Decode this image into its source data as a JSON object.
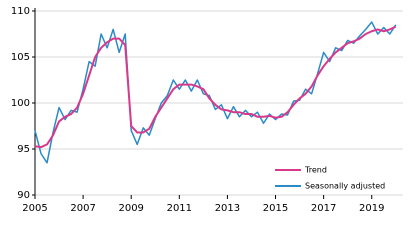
{
  "chart_data": {
    "type": "line",
    "x": [
      2005,
      2005.25,
      2005.5,
      2005.75,
      2006,
      2006.25,
      2006.5,
      2006.75,
      2007,
      2007.25,
      2007.5,
      2007.75,
      2008,
      2008.25,
      2008.5,
      2008.75,
      2009,
      2009.25,
      2009.5,
      2009.75,
      2010,
      2010.25,
      2010.5,
      2010.75,
      2011,
      2011.25,
      2011.5,
      2011.75,
      2012,
      2012.25,
      2012.5,
      2012.75,
      2013,
      2013.25,
      2013.5,
      2013.75,
      2014,
      2014.25,
      2014.5,
      2014.75,
      2015,
      2015.25,
      2015.5,
      2015.75,
      2016,
      2016.25,
      2016.5,
      2016.75,
      2017,
      2017.25,
      2017.5,
      2017.75,
      2018,
      2018.25,
      2018.5,
      2018.75,
      2019,
      2019.25,
      2019.5,
      2019.75,
      2020
    ],
    "series": [
      {
        "name": "Trend",
        "color": "#d9398d",
        "values": [
          95.3,
          95.2,
          95.5,
          96.5,
          98.0,
          98.5,
          98.8,
          99.5,
          101.0,
          103.0,
          105.0,
          106.0,
          106.6,
          107.0,
          107.0,
          106.3,
          97.5,
          96.8,
          96.8,
          97.2,
          98.5,
          99.5,
          100.5,
          101.5,
          102.0,
          102.0,
          102.0,
          101.8,
          101.5,
          100.5,
          99.8,
          99.3,
          99.2,
          99.0,
          99.0,
          98.8,
          98.8,
          98.5,
          98.5,
          98.6,
          98.4,
          98.5,
          99.0,
          99.8,
          100.5,
          101.0,
          101.8,
          103.0,
          104.0,
          104.8,
          105.5,
          106.0,
          106.5,
          106.7,
          107.0,
          107.5,
          107.8,
          108.0,
          107.8,
          108.0,
          108.3
        ]
      },
      {
        "name": "Seasonally adjusted",
        "color": "#2a8bc6",
        "values": [
          97.0,
          94.5,
          93.5,
          96.8,
          99.5,
          98.2,
          99.2,
          99.0,
          101.5,
          104.5,
          104.0,
          107.5,
          106.0,
          108.0,
          105.5,
          107.5,
          97.0,
          95.5,
          97.3,
          96.5,
          98.3,
          100.0,
          100.8,
          102.5,
          101.5,
          102.5,
          101.3,
          102.5,
          101.0,
          100.8,
          99.3,
          99.8,
          98.3,
          99.6,
          98.5,
          99.2,
          98.5,
          99.0,
          97.8,
          98.8,
          98.2,
          98.8,
          98.7,
          100.2,
          100.3,
          101.5,
          101.0,
          103.2,
          105.5,
          104.5,
          106.0,
          105.7,
          106.8,
          106.5,
          107.3,
          108.0,
          108.8,
          107.5,
          108.2,
          107.5,
          108.5
        ]
      }
    ],
    "xlim": [
      2005,
      2020.3
    ],
    "xticks": [
      2005,
      2007,
      2009,
      2011,
      2013,
      2015,
      2017,
      2019
    ],
    "ylim": [
      90,
      110
    ],
    "yticks": [
      90,
      95,
      100,
      105,
      110
    ],
    "grid": true,
    "legend": "lower right"
  }
}
